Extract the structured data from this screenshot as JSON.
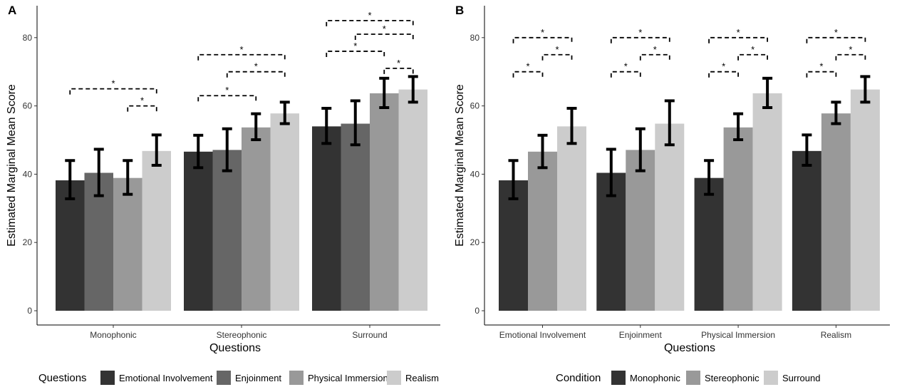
{
  "chart_data": [
    {
      "type": "bar",
      "panel_label": "A",
      "title": "",
      "xlabel": "Questions",
      "ylabel": "Estimated Marginal Mean Score",
      "ylim": [
        0,
        90
      ],
      "yticks": [
        0,
        20,
        40,
        60,
        80
      ],
      "categories": [
        "Monophonic",
        "Stereophonic",
        "Surround"
      ],
      "series": [
        {
          "name": "Emotional Involvement",
          "color": "#333333",
          "values": [
            38.2,
            46.6,
            54.0
          ],
          "ci_low": [
            32.8,
            41.9,
            49.0
          ],
          "ci_high": [
            44.0,
            51.4,
            59.3
          ]
        },
        {
          "name": "Enjoinment",
          "color": "#666666",
          "values": [
            40.4,
            47.1,
            54.8
          ],
          "ci_low": [
            33.7,
            41.0,
            48.6
          ],
          "ci_high": [
            47.3,
            53.3,
            61.5
          ]
        },
        {
          "name": "Physical Immersion",
          "color": "#999999",
          "values": [
            38.9,
            53.7,
            63.7
          ],
          "ci_low": [
            34.1,
            50.1,
            59.5
          ],
          "ci_high": [
            44.0,
            57.7,
            68.1
          ]
        },
        {
          "name": "Realism",
          "color": "#cccccc",
          "values": [
            46.8,
            57.8,
            64.8
          ],
          "ci_low": [
            42.6,
            54.8,
            61.1
          ],
          "ci_high": [
            51.5,
            61.1,
            68.6
          ]
        }
      ],
      "significance": [
        {
          "category": 0,
          "from": 0,
          "to": 3,
          "y": 65,
          "label": "*"
        },
        {
          "category": 0,
          "from": 2,
          "to": 3,
          "y": 60,
          "label": "*"
        },
        {
          "category": 1,
          "from": 0,
          "to": 3,
          "y": 75,
          "label": "*"
        },
        {
          "category": 1,
          "from": 1,
          "to": 3,
          "y": 70,
          "label": "*"
        },
        {
          "category": 1,
          "from": 0,
          "to": 2,
          "y": 63,
          "label": "*"
        },
        {
          "category": 2,
          "from": 0,
          "to": 3,
          "y": 85,
          "label": "*"
        },
        {
          "category": 2,
          "from": 1,
          "to": 3,
          "y": 81,
          "label": "*"
        },
        {
          "category": 2,
          "from": 0,
          "to": 2,
          "y": 76,
          "label": "*"
        },
        {
          "category": 2,
          "from": 2,
          "to": 3,
          "y": 71,
          "label": "*"
        }
      ],
      "legend": {
        "title": "Questions",
        "placement": "bottom"
      }
    },
    {
      "type": "bar",
      "panel_label": "B",
      "title": "",
      "xlabel": "Questions",
      "ylabel": "Estimated Marginal Mean Score",
      "ylim": [
        0,
        90
      ],
      "yticks": [
        0,
        20,
        40,
        60,
        80
      ],
      "categories": [
        "Emotional Involvement",
        "Enjoinment",
        "Physical Immersion",
        "Realism"
      ],
      "series": [
        {
          "name": "Monophonic",
          "color": "#333333",
          "values": [
            38.2,
            40.4,
            38.9,
            46.8
          ],
          "ci_low": [
            32.8,
            33.7,
            34.1,
            42.6
          ],
          "ci_high": [
            44.0,
            47.3,
            44.0,
            51.5
          ]
        },
        {
          "name": "Stereophonic",
          "color": "#999999",
          "values": [
            46.6,
            47.1,
            53.7,
            57.8
          ],
          "ci_low": [
            41.9,
            41.0,
            50.1,
            54.8
          ],
          "ci_high": [
            51.4,
            53.3,
            57.7,
            61.1
          ]
        },
        {
          "name": "Surround",
          "color": "#cccccc",
          "values": [
            54.0,
            54.8,
            63.7,
            64.8
          ],
          "ci_low": [
            49.0,
            48.6,
            59.5,
            61.1
          ],
          "ci_high": [
            59.3,
            61.5,
            68.1,
            68.6
          ]
        }
      ],
      "significance": [
        {
          "category": 0,
          "from": 0,
          "to": 2,
          "y": 80,
          "label": "*"
        },
        {
          "category": 0,
          "from": 1,
          "to": 2,
          "y": 75,
          "label": "*"
        },
        {
          "category": 0,
          "from": 0,
          "to": 1,
          "y": 70,
          "label": "*"
        },
        {
          "category": 1,
          "from": 0,
          "to": 2,
          "y": 80,
          "label": "*"
        },
        {
          "category": 1,
          "from": 1,
          "to": 2,
          "y": 75,
          "label": "*"
        },
        {
          "category": 1,
          "from": 0,
          "to": 1,
          "y": 70,
          "label": "*"
        },
        {
          "category": 2,
          "from": 0,
          "to": 2,
          "y": 80,
          "label": "*"
        },
        {
          "category": 2,
          "from": 1,
          "to": 2,
          "y": 75,
          "label": "*"
        },
        {
          "category": 2,
          "from": 0,
          "to": 1,
          "y": 70,
          "label": "*"
        },
        {
          "category": 3,
          "from": 0,
          "to": 2,
          "y": 80,
          "label": "*"
        },
        {
          "category": 3,
          "from": 1,
          "to": 2,
          "y": 75,
          "label": "*"
        },
        {
          "category": 3,
          "from": 0,
          "to": 1,
          "y": 70,
          "label": "*"
        }
      ],
      "legend": {
        "title": "Condition",
        "placement": "bottom"
      }
    }
  ]
}
